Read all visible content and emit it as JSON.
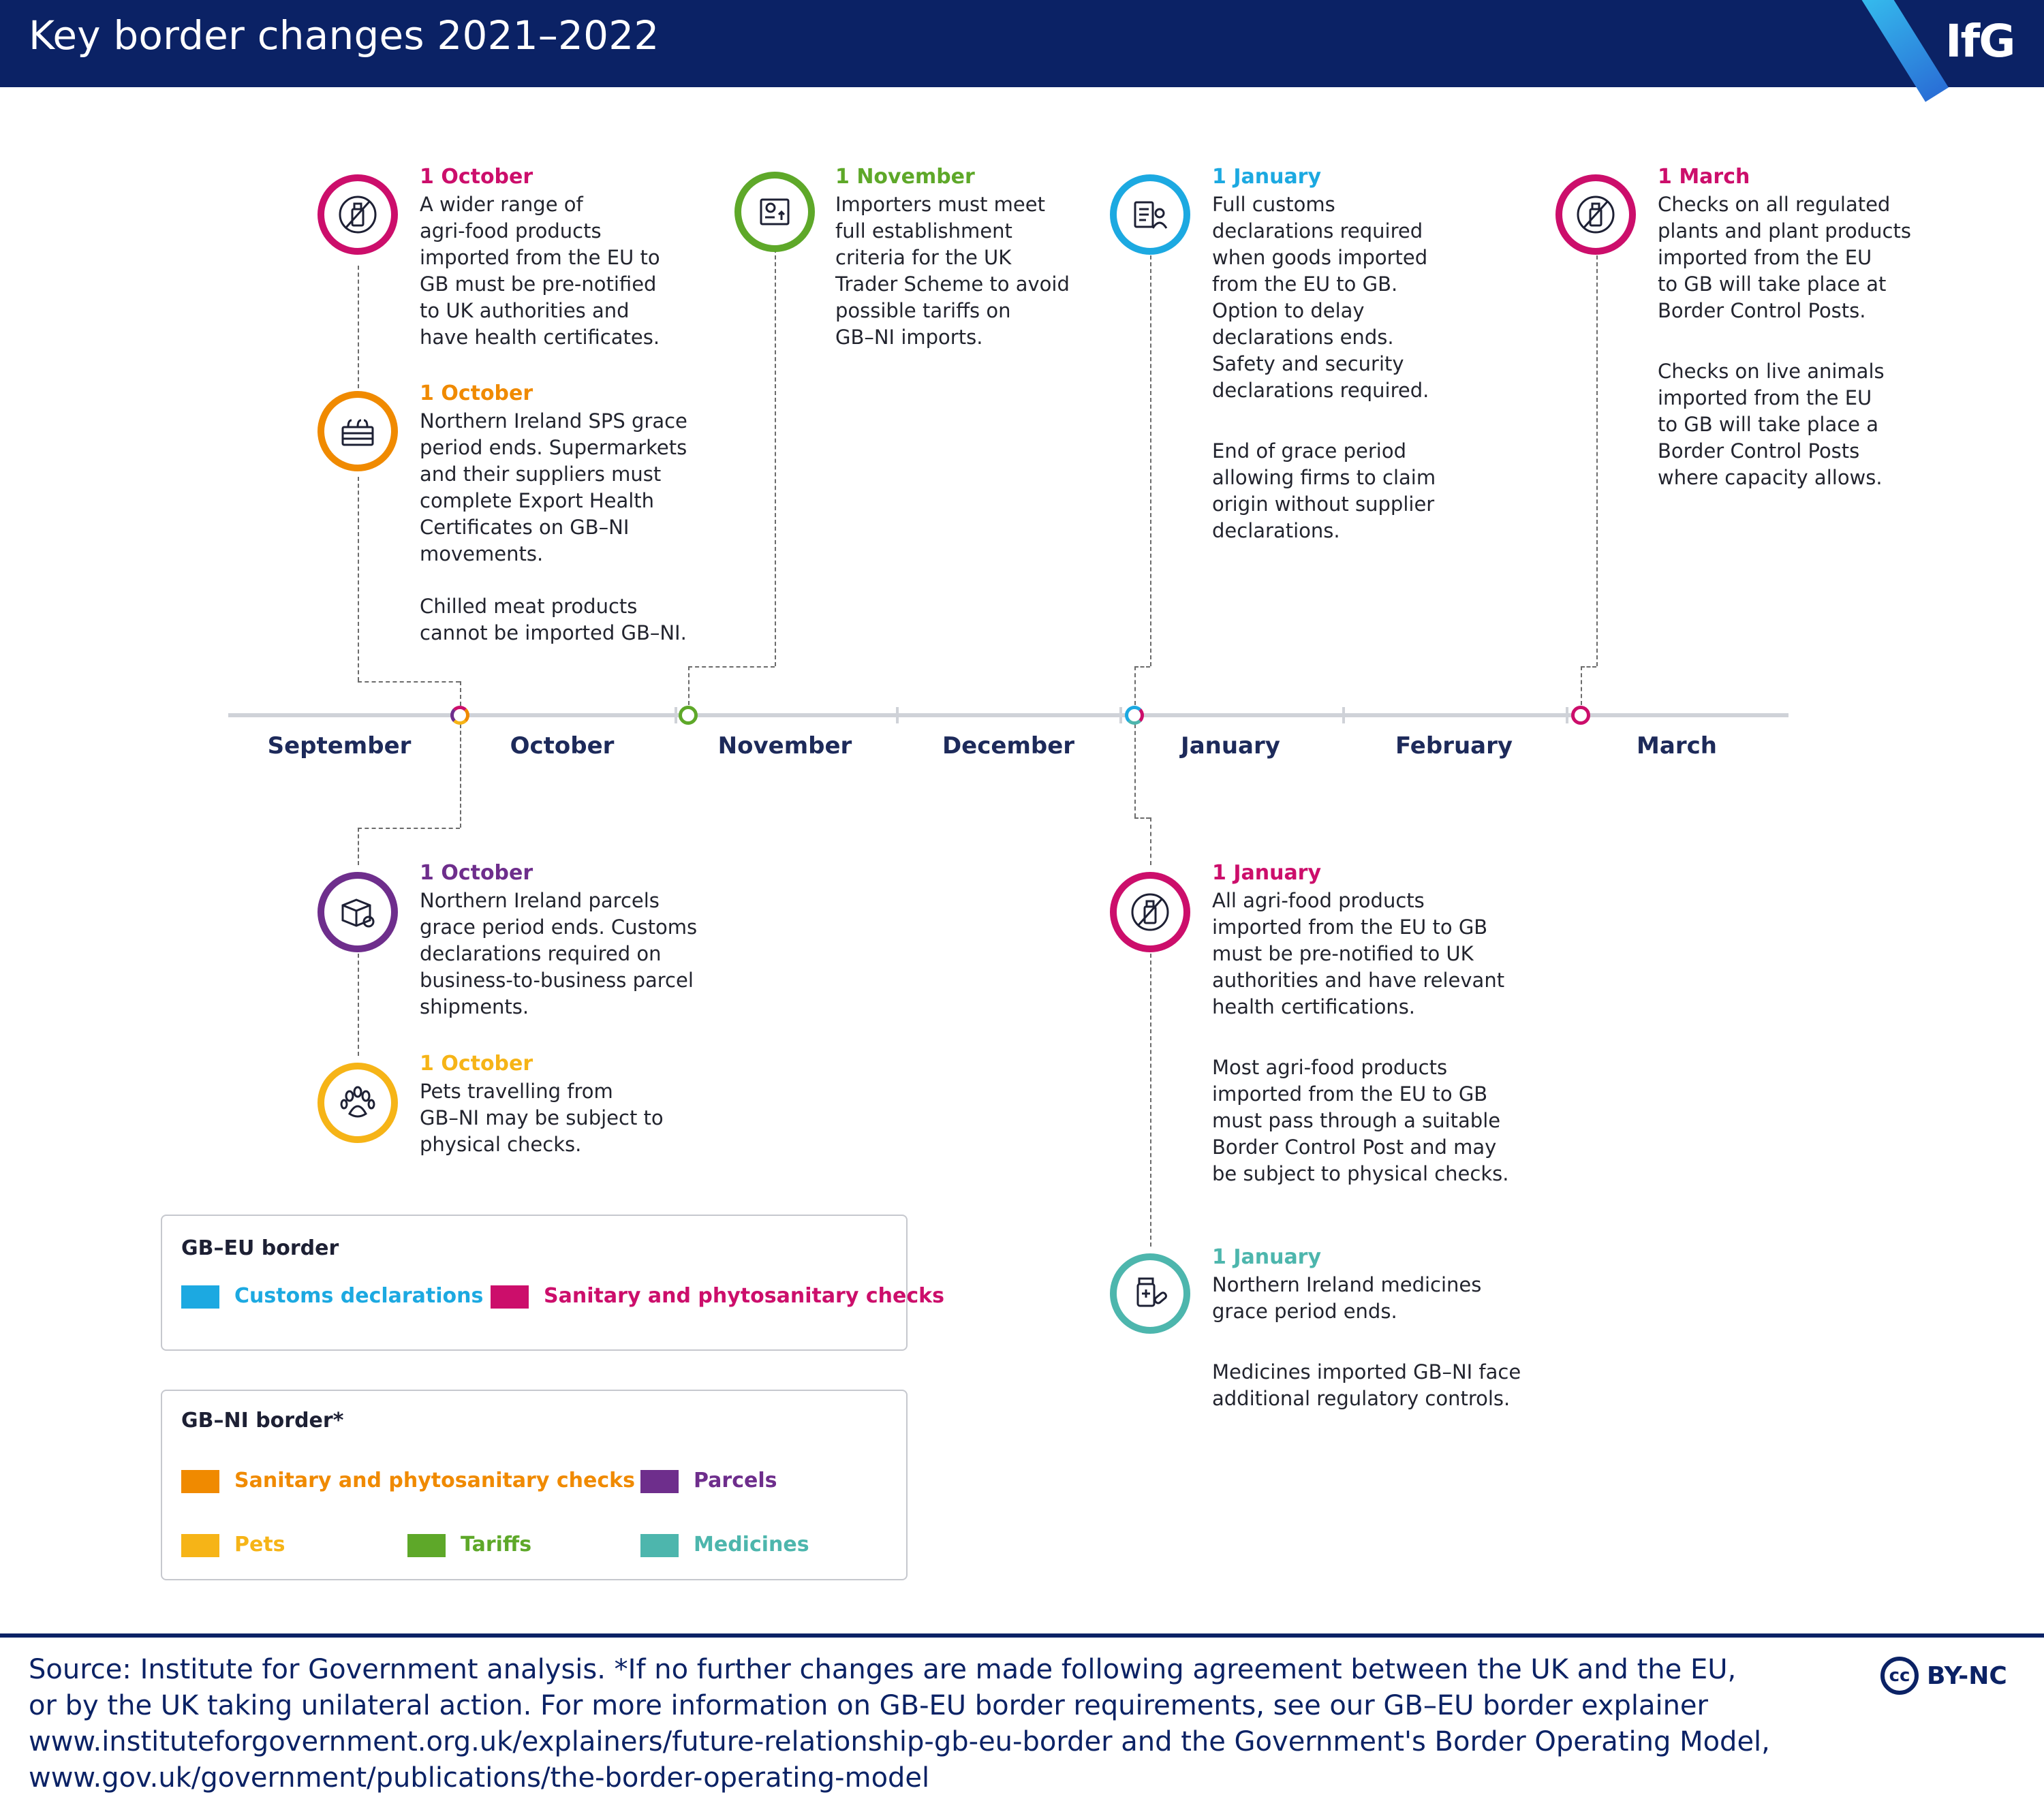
{
  "header": {
    "title": "Key border changes 2021–2022",
    "logo": "IfG"
  },
  "colors": {
    "customs": "#1ca9e1",
    "sps_eu": "#cc0e6b",
    "sps_ni": "#f08a00",
    "parcels": "#6e2e8c",
    "pets": "#f6b417",
    "tariffs": "#5ea829",
    "medicines": "#4db6ad"
  },
  "timeline": {
    "months": [
      "September",
      "October",
      "November",
      "December",
      "January",
      "February",
      "March"
    ]
  },
  "events": {
    "oct_agrifood": {
      "date": "1 October",
      "lines": [
        "A wider range of",
        "agri-food products",
        "imported from the EU to",
        "GB must be pre-notified",
        "to UK authorities and",
        "have health certificates."
      ],
      "icon": "no-bottle-icon"
    },
    "oct_sps_ni": {
      "date": "1 October",
      "lines": [
        "Northern Ireland SPS grace",
        "period ends. Supermarkets",
        "and their suppliers must",
        "complete Export Health",
        "Certificates on GB–NI",
        "movements."
      ],
      "lines2": [
        "Chilled meat products",
        "cannot be imported GB–NI."
      ],
      "icon": "crate-icon"
    },
    "nov_tariffs": {
      "date": "1 November",
      "lines": [
        "Importers must meet",
        "full establishment",
        "criteria for the UK",
        "Trader Scheme to avoid",
        "possible tariffs on",
        "GB–NI imports."
      ],
      "icon": "trade-document-icon"
    },
    "jan_customs": {
      "date": "1 January",
      "lines": [
        "Full customs",
        "declarations required",
        "when goods imported",
        "from the EU to GB.",
        "Option to delay",
        "declarations ends.",
        "Safety and security",
        "declarations required."
      ],
      "lines2": [
        "End of grace period",
        "allowing firms to claim",
        "origin without supplier",
        "declarations."
      ],
      "icon": "clipboard-officer-icon"
    },
    "mar_plants": {
      "date": "1 March",
      "lines": [
        "Checks on all regulated",
        "plants and plant products",
        "imported from the EU",
        "to GB will take place at",
        "Border Control Posts."
      ],
      "lines2": [
        "Checks on live animals",
        "imported from the EU",
        "to GB will take place a",
        "Border Control Posts",
        "where capacity allows."
      ],
      "icon": "no-bottle-icon"
    },
    "oct_parcels": {
      "date": "1 October",
      "lines": [
        "Northern Ireland parcels",
        "grace period ends. Customs",
        "declarations required on",
        "business-to-business parcel",
        "shipments."
      ],
      "icon": "parcel-icon"
    },
    "oct_pets": {
      "date": "1 October",
      "lines": [
        "Pets travelling from",
        "GB–NI may be subject to",
        "physical checks."
      ],
      "icon": "paw-icon"
    },
    "jan_agrifood": {
      "date": "1 January",
      "lines": [
        "All agri-food products",
        "imported from the EU to GB",
        "must be pre-notified to UK",
        "authorities and have relevant",
        "health certifications."
      ],
      "lines2": [
        "Most agri-food products",
        "imported from the EU to GB",
        "must pass through a suitable",
        "Border Control Post and may",
        "be subject to physical checks."
      ],
      "icon": "no-bottle-icon"
    },
    "jan_medicines": {
      "date": "1 January",
      "lines": [
        "Northern Ireland medicines",
        "grace period ends."
      ],
      "lines2": [
        "Medicines imported GB–NI face",
        "additional regulatory controls."
      ],
      "icon": "medicine-icon"
    }
  },
  "legend": {
    "gb_eu": {
      "title": "GB–EU border",
      "items": [
        "Customs declarations",
        "Sanitary and phytosanitary checks"
      ]
    },
    "gb_ni": {
      "title": "GB–NI border*",
      "items": [
        "Sanitary and phytosanitary checks",
        "Parcels",
        "Pets",
        "Tariffs",
        "Medicines"
      ]
    }
  },
  "footer": {
    "lines": [
      "Source: Institute for Government analysis. *If no further changes are made following agreement between the UK and the EU,",
      "or by the UK taking unilateral action. For more information on GB-EU border requirements, see our GB–EU border explainer",
      "www.instituteforgovernment.org.uk/explainers/future-relationship-gb-eu-border and the Government's Border Operating Model,",
      "www.gov.uk/government/publications/the-border-operating-model"
    ],
    "license": "BY-NC",
    "cc": "cc"
  }
}
